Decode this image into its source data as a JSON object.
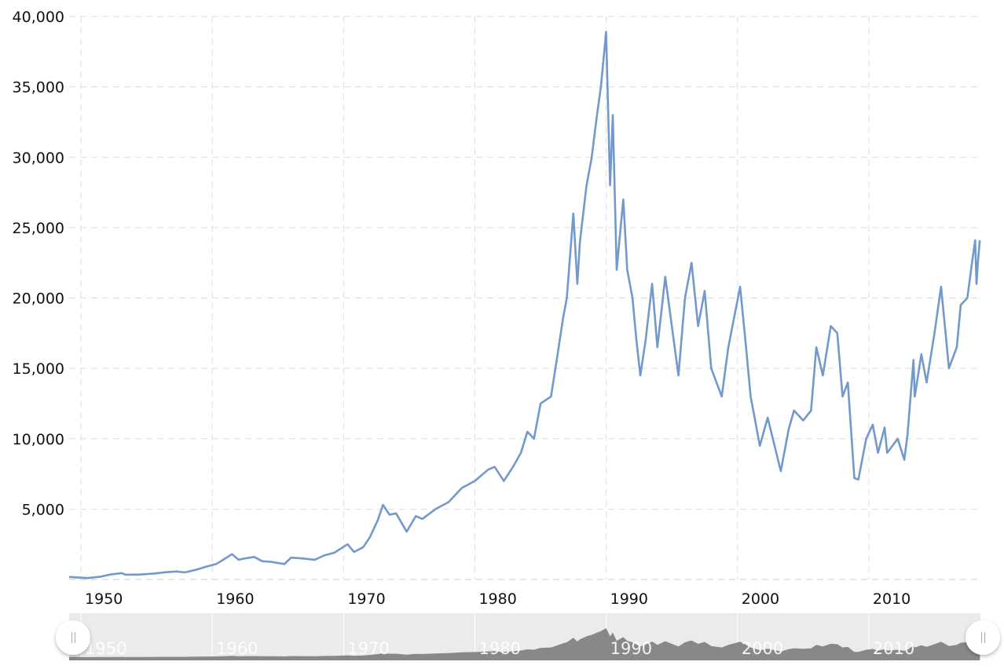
{
  "chart_data": {
    "type": "line",
    "title": "",
    "xlabel": "",
    "ylabel": "",
    "xlim": [
      1949.1,
      2018.5
    ],
    "ylim": [
      0,
      40000
    ],
    "grid": true,
    "legend": "none",
    "line_color": "#7399cc",
    "navigator_fill": "#888888",
    "navigator_bg": "#ebebeb",
    "y_ticks": [
      {
        "value": 5000,
        "label": "5,000"
      },
      {
        "value": 10000,
        "label": "10,000"
      },
      {
        "value": 15000,
        "label": "15,000"
      },
      {
        "value": 20000,
        "label": "20,000"
      },
      {
        "value": 25000,
        "label": "25,000"
      },
      {
        "value": 30000,
        "label": "30,000"
      },
      {
        "value": 35000,
        "label": "35,000"
      },
      {
        "value": 40000,
        "label": "40,000"
      }
    ],
    "x_ticks": [
      {
        "value": 1950,
        "label": "1950"
      },
      {
        "value": 1960,
        "label": "1960"
      },
      {
        "value": 1970,
        "label": "1970"
      },
      {
        "value": 1980,
        "label": "1980"
      },
      {
        "value": 1990,
        "label": "1990"
      },
      {
        "value": 2000,
        "label": "2000"
      },
      {
        "value": 2010,
        "label": "2010"
      }
    ],
    "series": [
      {
        "points": [
          [
            1949.1,
            176
          ],
          [
            1950.5,
            100
          ],
          [
            1951.5,
            200
          ],
          [
            1952.3,
            360
          ],
          [
            1953.1,
            450
          ],
          [
            1953.4,
            340
          ],
          [
            1954.5,
            350
          ],
          [
            1955.5,
            420
          ],
          [
            1956.5,
            520
          ],
          [
            1957.3,
            570
          ],
          [
            1957.9,
            500
          ],
          [
            1958.8,
            700
          ],
          [
            1959.5,
            900
          ],
          [
            1960.3,
            1100
          ],
          [
            1961.0,
            1500
          ],
          [
            1961.5,
            1800
          ],
          [
            1962.0,
            1400
          ],
          [
            1962.5,
            1500
          ],
          [
            1963.2,
            1600
          ],
          [
            1963.8,
            1300
          ],
          [
            1964.5,
            1250
          ],
          [
            1965.5,
            1100
          ],
          [
            1966.0,
            1550
          ],
          [
            1966.8,
            1500
          ],
          [
            1967.8,
            1400
          ],
          [
            1968.5,
            1700
          ],
          [
            1969.3,
            1900
          ],
          [
            1970.3,
            2500
          ],
          [
            1970.8,
            1950
          ],
          [
            1971.5,
            2300
          ],
          [
            1972.0,
            3000
          ],
          [
            1972.6,
            4200
          ],
          [
            1973.0,
            5300
          ],
          [
            1973.5,
            4600
          ],
          [
            1974.0,
            4700
          ],
          [
            1974.8,
            3400
          ],
          [
            1975.5,
            4500
          ],
          [
            1976.0,
            4300
          ],
          [
            1977.0,
            5000
          ],
          [
            1978.0,
            5500
          ],
          [
            1979.0,
            6500
          ],
          [
            1980.0,
            7000
          ],
          [
            1981.0,
            7800
          ],
          [
            1981.5,
            8000
          ],
          [
            1982.2,
            7000
          ],
          [
            1982.9,
            8000
          ],
          [
            1983.5,
            9000
          ],
          [
            1984.0,
            10500
          ],
          [
            1984.5,
            10000
          ],
          [
            1985.0,
            12500
          ],
          [
            1985.8,
            13000
          ],
          [
            1986.3,
            16000
          ],
          [
            1986.7,
            18500
          ],
          [
            1987.0,
            20000
          ],
          [
            1987.5,
            26000
          ],
          [
            1987.8,
            21000
          ],
          [
            1988.0,
            24000
          ],
          [
            1988.5,
            28000
          ],
          [
            1988.9,
            30000
          ],
          [
            1989.3,
            33000
          ],
          [
            1989.6,
            35000
          ],
          [
            1989.99,
            38900
          ],
          [
            1990.3,
            28000
          ],
          [
            1990.5,
            33000
          ],
          [
            1990.8,
            22000
          ],
          [
            1991.0,
            24000
          ],
          [
            1991.3,
            27000
          ],
          [
            1991.6,
            22000
          ],
          [
            1992.0,
            20000
          ],
          [
            1992.3,
            17000
          ],
          [
            1992.6,
            14500
          ],
          [
            1993.0,
            17000
          ],
          [
            1993.5,
            21000
          ],
          [
            1993.9,
            16500
          ],
          [
            1994.5,
            21500
          ],
          [
            1995.0,
            18000
          ],
          [
            1995.5,
            14500
          ],
          [
            1996.0,
            20000
          ],
          [
            1996.5,
            22500
          ],
          [
            1997.0,
            18000
          ],
          [
            1997.5,
            20500
          ],
          [
            1998.0,
            15000
          ],
          [
            1998.8,
            13000
          ],
          [
            1999.3,
            16500
          ],
          [
            2000.2,
            20800
          ],
          [
            2000.6,
            17000
          ],
          [
            2001.0,
            13000
          ],
          [
            2001.7,
            9500
          ],
          [
            2002.3,
            11500
          ],
          [
            2003.3,
            7700
          ],
          [
            2003.9,
            10700
          ],
          [
            2004.3,
            12000
          ],
          [
            2005.0,
            11300
          ],
          [
            2005.6,
            12000
          ],
          [
            2006.0,
            16500
          ],
          [
            2006.5,
            14500
          ],
          [
            2007.1,
            18000
          ],
          [
            2007.6,
            17500
          ],
          [
            2008.0,
            13000
          ],
          [
            2008.4,
            14000
          ],
          [
            2008.9,
            7200
          ],
          [
            2009.2,
            7100
          ],
          [
            2009.8,
            10000
          ],
          [
            2010.3,
            11000
          ],
          [
            2010.7,
            9000
          ],
          [
            2011.2,
            10800
          ],
          [
            2011.4,
            9000
          ],
          [
            2012.2,
            10000
          ],
          [
            2012.7,
            8500
          ],
          [
            2012.95,
            10300
          ],
          [
            2013.4,
            15600
          ],
          [
            2013.5,
            13000
          ],
          [
            2014.0,
            16000
          ],
          [
            2014.4,
            14000
          ],
          [
            2015.0,
            17500
          ],
          [
            2015.5,
            20800
          ],
          [
            2015.9,
            17000
          ],
          [
            2016.1,
            15000
          ],
          [
            2016.7,
            16500
          ],
          [
            2017.0,
            19500
          ],
          [
            2017.5,
            20000
          ],
          [
            2017.9,
            22800
          ],
          [
            2018.1,
            24100
          ],
          [
            2018.2,
            21000
          ],
          [
            2018.3,
            22500
          ],
          [
            2018.45,
            24100
          ]
        ]
      }
    ]
  },
  "navigator": {
    "left_handle_icon": "grip-lines-icon",
    "right_handle_icon": "grip-lines-icon"
  }
}
